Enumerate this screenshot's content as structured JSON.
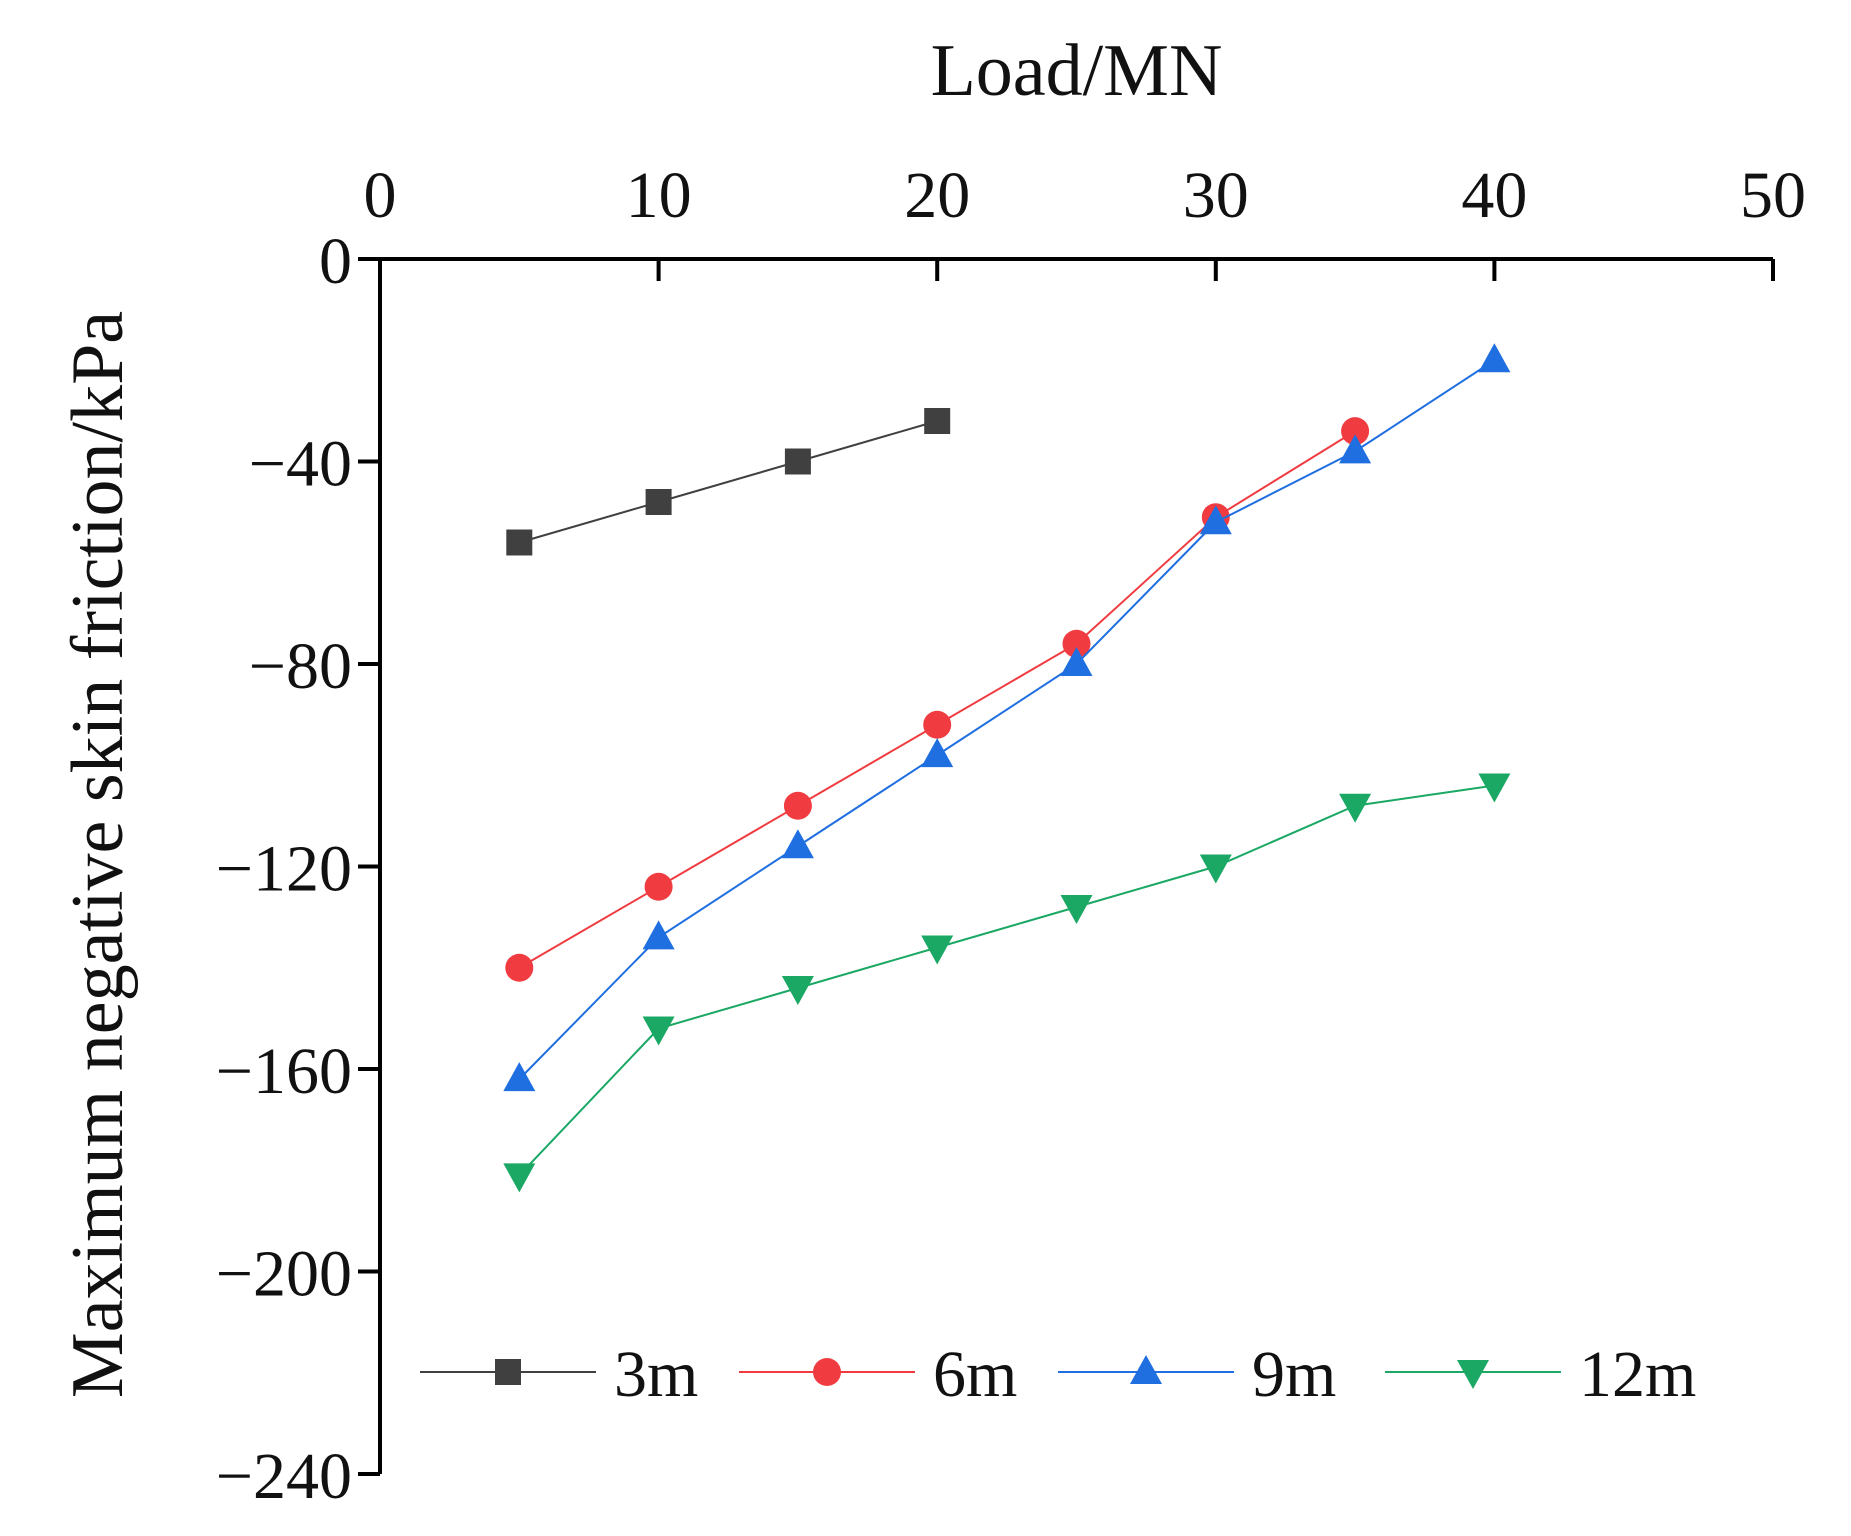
{
  "chart_data": {
    "type": "line",
    "title": "",
    "xlabel": "Load/MN",
    "ylabel": "Maximum negative skin friction/kPa",
    "xlim": [
      0,
      50
    ],
    "ylim": [
      -240,
      0
    ],
    "x_axis_position": "top",
    "x_ticks": [
      0,
      10,
      20,
      30,
      40,
      50
    ],
    "x_tick_labels": [
      "0",
      "10",
      "20",
      "30",
      "40",
      "50"
    ],
    "y_ticks": [
      0,
      -40,
      -80,
      -120,
      -160,
      -200,
      -240
    ],
    "y_tick_labels": [
      "0",
      "−40",
      "−80",
      "−120",
      "−160",
      "−200",
      "−240"
    ],
    "grid": false,
    "legend_position": "bottom",
    "series": [
      {
        "name": "3m",
        "color": "#404040",
        "marker": "square",
        "x": [
          5,
          10,
          15,
          20
        ],
        "y": [
          -56,
          -48,
          -40,
          -32
        ]
      },
      {
        "name": "6m",
        "color": "#f03c40",
        "marker": "circle",
        "x": [
          5,
          10,
          15,
          20,
          25,
          30,
          35
        ],
        "y": [
          -140,
          -124,
          -108,
          -92,
          -76,
          -51,
          -34
        ]
      },
      {
        "name": "9m",
        "color": "#1f6fe0",
        "marker": "triangle-up",
        "x": [
          5,
          10,
          15,
          20,
          25,
          30,
          35,
          40
        ],
        "y": [
          -162,
          -134,
          -116,
          -98,
          -80,
          -52,
          -38,
          -20
        ]
      },
      {
        "name": "12m",
        "color": "#1aa864",
        "marker": "triangle-down",
        "x": [
          5,
          10,
          15,
          20,
          25,
          30,
          35,
          40
        ],
        "y": [
          -181,
          -152,
          -144,
          -136,
          -128,
          -120,
          -108,
          -104
        ]
      }
    ]
  }
}
